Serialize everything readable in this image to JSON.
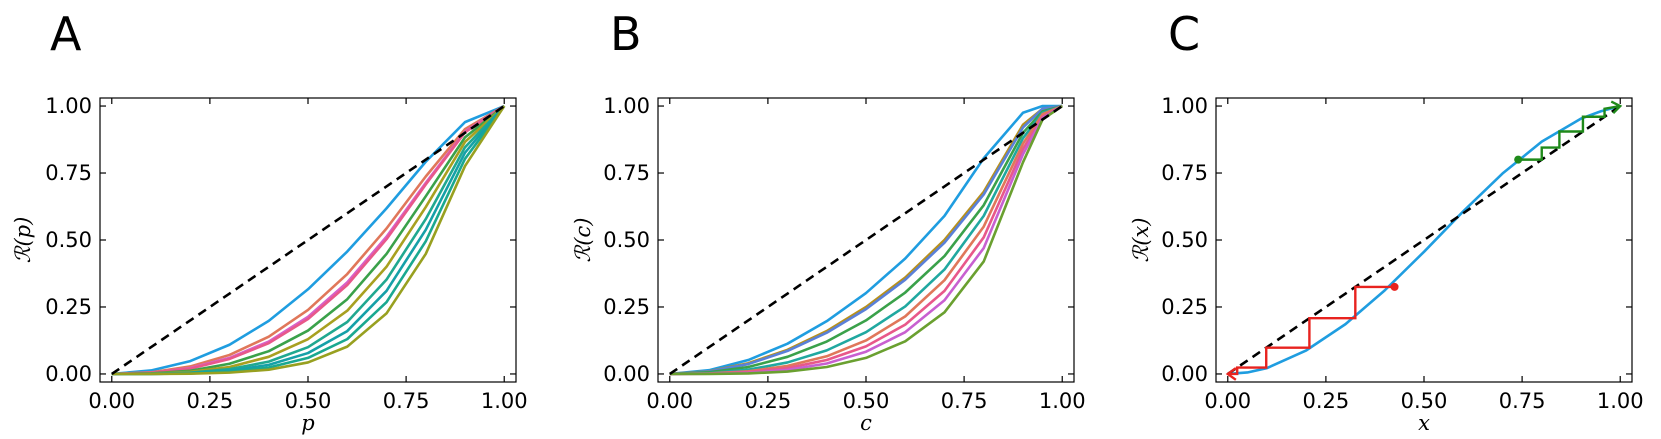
{
  "chart_data": [
    {
      "panel": "A",
      "type": "line",
      "xlabel": "p",
      "ylabel": "ℛ(p)",
      "xlim": [
        -0.03,
        1.03
      ],
      "ylim": [
        -0.03,
        1.03
      ],
      "xticks": [
        "0.00",
        "0.25",
        "0.50",
        "0.75",
        "1.00"
      ],
      "yticks": [
        "0.00",
        "0.25",
        "0.50",
        "0.75",
        "1.00"
      ],
      "reference_line": {
        "style": "dashed",
        "color": "#000000",
        "x": [
          0,
          1
        ],
        "y": [
          0,
          1
        ]
      },
      "series": [
        {
          "color": "#1f9de0",
          "x": [
            0,
            0.1,
            0.2,
            0.3,
            0.4,
            0.5,
            0.6,
            0.7,
            0.8,
            0.9,
            1.0
          ],
          "y": [
            0,
            0.013,
            0.048,
            0.109,
            0.198,
            0.316,
            0.457,
            0.618,
            0.792,
            0.94,
            1.0
          ]
        },
        {
          "color": "#e0775a",
          "x": [
            0,
            0.1,
            0.2,
            0.3,
            0.4,
            0.5,
            0.6,
            0.7,
            0.8,
            0.9,
            1.0
          ],
          "y": [
            0,
            0.006,
            0.028,
            0.071,
            0.139,
            0.239,
            0.373,
            0.543,
            0.737,
            0.914,
            1.0
          ]
        },
        {
          "color": "#d860c8",
          "x": [
            0,
            0.1,
            0.2,
            0.3,
            0.4,
            0.5,
            0.6,
            0.7,
            0.8,
            0.9,
            1.0
          ],
          "y": [
            0,
            0.004,
            0.022,
            0.06,
            0.121,
            0.213,
            0.342,
            0.512,
            0.713,
            0.905,
            1.0
          ]
        },
        {
          "color": "#e8588a",
          "x": [
            0,
            0.1,
            0.2,
            0.3,
            0.4,
            0.5,
            0.6,
            0.7,
            0.8,
            0.9,
            1.0
          ],
          "y": [
            0,
            0.004,
            0.02,
            0.056,
            0.115,
            0.205,
            0.332,
            0.503,
            0.707,
            0.902,
            1.0
          ]
        },
        {
          "color": "#3aa14a",
          "x": [
            0,
            0.1,
            0.2,
            0.3,
            0.4,
            0.5,
            0.6,
            0.7,
            0.8,
            0.9,
            1.0
          ],
          "y": [
            0,
            0.002,
            0.012,
            0.038,
            0.085,
            0.162,
            0.279,
            0.448,
            0.663,
            0.883,
            1.0
          ]
        },
        {
          "color": "#a8a020",
          "x": [
            0,
            0.1,
            0.2,
            0.3,
            0.4,
            0.5,
            0.6,
            0.7,
            0.8,
            0.9,
            1.0
          ],
          "y": [
            0,
            0.001,
            0.008,
            0.026,
            0.064,
            0.13,
            0.236,
            0.4,
            0.623,
            0.866,
            1.0
          ]
        },
        {
          "color": "#20a890",
          "x": [
            0,
            0.1,
            0.2,
            0.3,
            0.4,
            0.5,
            0.6,
            0.7,
            0.8,
            0.9,
            1.0
          ],
          "y": [
            0,
            0.001,
            0.005,
            0.018,
            0.046,
            0.1,
            0.194,
            0.352,
            0.578,
            0.846,
            1.0
          ]
        },
        {
          "color": "#15a0a8",
          "x": [
            0,
            0.1,
            0.2,
            0.3,
            0.4,
            0.5,
            0.6,
            0.7,
            0.8,
            0.9,
            1.0
          ],
          "y": [
            0,
            0.0,
            0.003,
            0.012,
            0.034,
            0.078,
            0.16,
            0.31,
            0.538,
            0.826,
            1.0
          ]
        },
        {
          "color": "#1aa890",
          "x": [
            0,
            0.1,
            0.2,
            0.3,
            0.4,
            0.5,
            0.6,
            0.7,
            0.8,
            0.9,
            1.0
          ],
          "y": [
            0,
            0.0,
            0.002,
            0.008,
            0.024,
            0.06,
            0.13,
            0.268,
            0.495,
            0.803,
            1.0
          ]
        },
        {
          "color": "#98a020",
          "x": [
            0,
            0.1,
            0.2,
            0.3,
            0.4,
            0.5,
            0.6,
            0.7,
            0.8,
            0.9,
            1.0
          ],
          "y": [
            0,
            0.0,
            0.001,
            0.005,
            0.016,
            0.043,
            0.102,
            0.226,
            0.448,
            0.776,
            1.0
          ]
        }
      ]
    },
    {
      "panel": "B",
      "type": "line",
      "xlabel": "c",
      "ylabel": "ℛ(c)",
      "xlim": [
        -0.03,
        1.03
      ],
      "ylim": [
        -0.03,
        1.03
      ],
      "xticks": [
        "0.00",
        "0.25",
        "0.50",
        "0.75",
        "1.00"
      ],
      "yticks": [
        "0.00",
        "0.25",
        "0.50",
        "0.75",
        "1.00"
      ],
      "reference_line": {
        "style": "dashed",
        "color": "#000000",
        "x": [
          0,
          1
        ],
        "y": [
          0,
          1
        ]
      },
      "series": [
        {
          "color": "#1f9de0",
          "x": [
            0,
            0.1,
            0.2,
            0.3,
            0.4,
            0.5,
            0.6,
            0.7,
            0.8,
            0.9,
            0.95,
            1.0
          ],
          "y": [
            0,
            0.014,
            0.052,
            0.113,
            0.197,
            0.302,
            0.431,
            0.59,
            0.805,
            0.975,
            1.0,
            1.0
          ]
        },
        {
          "color": "#b8901a",
          "x": [
            0,
            0.1,
            0.2,
            0.3,
            0.4,
            0.5,
            0.6,
            0.7,
            0.8,
            0.9,
            0.95,
            1.0
          ],
          "y": [
            0,
            0.01,
            0.04,
            0.09,
            0.16,
            0.25,
            0.36,
            0.5,
            0.68,
            0.93,
            0.99,
            1.0
          ]
        },
        {
          "color": "#5a80d8",
          "x": [
            0,
            0.1,
            0.2,
            0.3,
            0.4,
            0.5,
            0.6,
            0.7,
            0.8,
            0.9,
            0.95,
            1.0
          ],
          "y": [
            0,
            0.009,
            0.037,
            0.086,
            0.154,
            0.242,
            0.352,
            0.49,
            0.67,
            0.92,
            0.99,
            1.0
          ]
        },
        {
          "color": "#3aa14a",
          "x": [
            0,
            0.1,
            0.2,
            0.3,
            0.4,
            0.5,
            0.6,
            0.7,
            0.8,
            0.9,
            0.95,
            1.0
          ],
          "y": [
            0,
            0.006,
            0.026,
            0.064,
            0.121,
            0.2,
            0.304,
            0.44,
            0.63,
            0.9,
            0.98,
            1.0
          ]
        },
        {
          "color": "#20a8a0",
          "x": [
            0,
            0.1,
            0.2,
            0.3,
            0.4,
            0.5,
            0.6,
            0.7,
            0.8,
            0.9,
            0.95,
            1.0
          ],
          "y": [
            0,
            0.003,
            0.016,
            0.043,
            0.088,
            0.156,
            0.252,
            0.39,
            0.59,
            0.88,
            0.975,
            1.0
          ]
        },
        {
          "color": "#e0775a",
          "x": [
            0,
            0.1,
            0.2,
            0.3,
            0.4,
            0.5,
            0.6,
            0.7,
            0.8,
            0.9,
            0.95,
            1.0
          ],
          "y": [
            0,
            0.002,
            0.01,
            0.03,
            0.066,
            0.125,
            0.215,
            0.35,
            0.55,
            0.86,
            0.97,
            1.0
          ]
        },
        {
          "color": "#e8588a",
          "x": [
            0,
            0.1,
            0.2,
            0.3,
            0.4,
            0.5,
            0.6,
            0.7,
            0.8,
            0.9,
            0.95,
            1.0
          ],
          "y": [
            0,
            0.001,
            0.007,
            0.022,
            0.052,
            0.103,
            0.184,
            0.31,
            0.51,
            0.84,
            0.96,
            1.0
          ]
        },
        {
          "color": "#c860d0",
          "x": [
            0,
            0.1,
            0.2,
            0.3,
            0.4,
            0.5,
            0.6,
            0.7,
            0.8,
            0.9,
            0.95,
            1.0
          ],
          "y": [
            0,
            0.001,
            0.004,
            0.015,
            0.039,
            0.083,
            0.156,
            0.275,
            0.47,
            0.82,
            0.955,
            1.0
          ]
        },
        {
          "color": "#6aa030",
          "x": [
            0,
            0.1,
            0.2,
            0.3,
            0.4,
            0.5,
            0.6,
            0.7,
            0.8,
            0.9,
            0.95,
            1.0
          ],
          "y": [
            0,
            0.0,
            0.002,
            0.009,
            0.026,
            0.06,
            0.122,
            0.23,
            0.42,
            0.79,
            0.95,
            1.0
          ]
        }
      ]
    },
    {
      "panel": "C",
      "type": "line",
      "xlabel": "x",
      "ylabel": "ℛ(x)",
      "xlim": [
        -0.03,
        1.03
      ],
      "ylim": [
        -0.03,
        1.03
      ],
      "xticks": [
        "0.00",
        "0.25",
        "0.50",
        "0.75",
        "1.00"
      ],
      "yticks": [
        "0.00",
        "0.25",
        "0.50",
        "0.75",
        "1.00"
      ],
      "reference_line": {
        "style": "dashed",
        "color": "#000000",
        "x": [
          0,
          1
        ],
        "y": [
          0,
          1
        ]
      },
      "series": [
        {
          "color": "#1f9de0",
          "x": [
            0,
            0.05,
            0.1,
            0.2,
            0.3,
            0.4,
            0.5,
            0.6,
            0.7,
            0.8,
            0.9,
            0.95,
            1.0
          ],
          "y": [
            0,
            0.0056,
            0.022,
            0.088,
            0.186,
            0.312,
            0.456,
            0.607,
            0.748,
            0.867,
            0.953,
            0.98,
            1.0
          ]
        }
      ],
      "cobwebs": [
        {
          "color": "#e8231f",
          "start": [
            0.425,
            0.325
          ],
          "path_x": [
            0.425,
            0.325,
            0.325,
            0.208,
            0.208,
            0.098,
            0.098,
            0.024,
            0.024,
            0.0
          ],
          "path_y": [
            0.325,
            0.325,
            0.208,
            0.208,
            0.098,
            0.098,
            0.024,
            0.024,
            0.0,
            0.0
          ]
        },
        {
          "color": "#1f8a1a",
          "start": [
            0.74,
            0.8
          ],
          "path_x": [
            0.74,
            0.8,
            0.8,
            0.845,
            0.845,
            0.905,
            0.905,
            0.96,
            0.96,
            1.0
          ],
          "path_y": [
            0.8,
            0.8,
            0.845,
            0.845,
            0.905,
            0.905,
            0.96,
            0.96,
            0.99,
            1.0
          ]
        }
      ]
    }
  ],
  "panel_letters": [
    "A",
    "B",
    "C"
  ]
}
